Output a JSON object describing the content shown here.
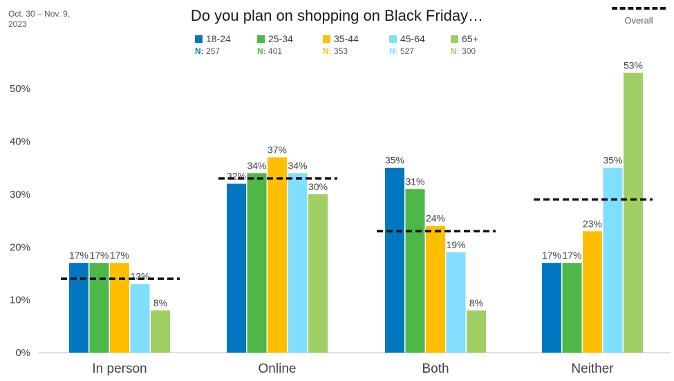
{
  "date_range": "Oct. 30 – Nov. 9, 2023",
  "overall_label": "Overall",
  "chart_data": {
    "type": "bar",
    "title": "Do you plan on shopping on Black Friday…",
    "categories": [
      "In person",
      "Online",
      "Both",
      "Neither"
    ],
    "series": [
      {
        "name": "18-24",
        "n_label": "N:",
        "n": "257",
        "color": "#0077c0",
        "values": [
          17,
          32,
          35,
          17
        ]
      },
      {
        "name": "25-34",
        "n_label": "N:",
        "n": "401",
        "color": "#4db848",
        "values": [
          17,
          34,
          31,
          17
        ]
      },
      {
        "name": "35-44",
        "n_label": "N:",
        "n": "353",
        "color": "#ffbf00",
        "values": [
          17,
          37,
          24,
          23
        ]
      },
      {
        "name": "45-64",
        "n_label": "N:",
        "n": "527",
        "color": "#80dfff",
        "values": [
          13,
          34,
          19,
          35
        ]
      },
      {
        "name": "65+",
        "n_label": "N:",
        "n": "300",
        "color": "#a0cf65",
        "values": [
          8,
          30,
          8,
          53
        ]
      }
    ],
    "overall": [
      14,
      33,
      23,
      29
    ],
    "ylim": [
      0,
      55
    ],
    "yticks": [
      "0%",
      "10%",
      "20%",
      "30%",
      "40%",
      "50%"
    ],
    "ytick_values": [
      0,
      10,
      20,
      30,
      40,
      50
    ],
    "value_suffix": "%",
    "grid": false,
    "legend": "top"
  }
}
